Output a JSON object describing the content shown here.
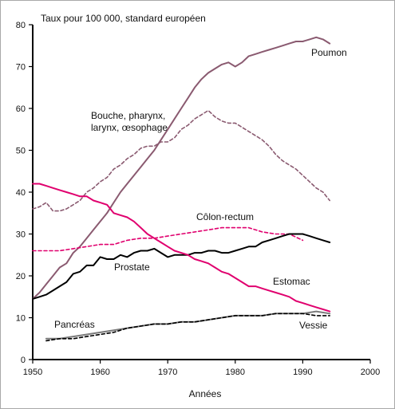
{
  "chart_data": {
    "type": "line",
    "title": "",
    "ylabel": "Taux pour 100 000, standard européen",
    "xlabel": "Années",
    "xlim": [
      1950,
      2000
    ],
    "ylim": [
      0,
      80
    ],
    "xticks": [
      "1950",
      "1960",
      "1970",
      "1980",
      "1990",
      "2000"
    ],
    "yticks": [
      "0",
      "10",
      "20",
      "30",
      "40",
      "50",
      "60",
      "70",
      "80"
    ],
    "grid": false,
    "series": [
      {
        "name": "Poumon",
        "color": "#8a5a70",
        "dash": "solid",
        "x": [
          1950,
          1951,
          1952,
          1953,
          1954,
          1955,
          1956,
          1957,
          1958,
          1959,
          1960,
          1961,
          1962,
          1963,
          1964,
          1965,
          1966,
          1967,
          1968,
          1969,
          1970,
          1971,
          1972,
          1973,
          1974,
          1975,
          1976,
          1977,
          1978,
          1979,
          1980,
          1981,
          1982,
          1983,
          1984,
          1985,
          1986,
          1987,
          1988,
          1989,
          1990,
          1991,
          1992,
          1993,
          1994
        ],
        "y": [
          14.5,
          16,
          18,
          20,
          22,
          23,
          25.5,
          27,
          29,
          31,
          33,
          35,
          37.5,
          40,
          42,
          44,
          46,
          48,
          50,
          52.5,
          55,
          57.5,
          60,
          62.5,
          65,
          67,
          68.5,
          69.5,
          70.5,
          71,
          70,
          71,
          72.5,
          73,
          73.5,
          74,
          74.5,
          75,
          75.5,
          76,
          76,
          76.5,
          77,
          76.5,
          75.5
        ]
      },
      {
        "name": "Bouche, pharynx, larynx, œsophage",
        "color": "#8a5a70",
        "dash": "dashed",
        "x": [
          1950,
          1951,
          1952,
          1953,
          1954,
          1955,
          1956,
          1957,
          1958,
          1959,
          1960,
          1961,
          1962,
          1963,
          1964,
          1965,
          1966,
          1967,
          1968,
          1969,
          1970,
          1971,
          1972,
          1973,
          1974,
          1975,
          1976,
          1977,
          1978,
          1979,
          1980,
          1981,
          1982,
          1983,
          1984,
          1985,
          1986,
          1987,
          1988,
          1989,
          1990,
          1991,
          1992,
          1993,
          1994
        ],
        "y": [
          36,
          36.5,
          37.5,
          35.5,
          35.5,
          36,
          37,
          38,
          40,
          41,
          42.5,
          43.5,
          45.5,
          46.5,
          48,
          49,
          50.5,
          51,
          51,
          52,
          52,
          53,
          55,
          56,
          57.5,
          58.5,
          59.5,
          58,
          57,
          56.5,
          56.5,
          55.5,
          54.5,
          53.5,
          52.5,
          51,
          49,
          47.5,
          46.5,
          45.5,
          44,
          42.5,
          41,
          40,
          38
        ]
      },
      {
        "name": "Côlon-rectum",
        "color": "#e0006e",
        "dash": "dashed",
        "x": [
          1950,
          1952,
          1954,
          1956,
          1958,
          1960,
          1962,
          1964,
          1966,
          1968,
          1970,
          1972,
          1974,
          1976,
          1978,
          1980,
          1982,
          1984,
          1986,
          1988,
          1990
        ],
        "y": [
          26,
          26,
          26,
          26.5,
          27,
          27.5,
          27.5,
          28.5,
          29,
          29,
          29.5,
          30,
          30.5,
          31,
          31.5,
          31.5,
          31.5,
          30.5,
          30,
          30,
          28.5
        ]
      },
      {
        "name": "Prostate",
        "color": "#000000",
        "dash": "solid",
        "x": [
          1950,
          1951,
          1952,
          1953,
          1954,
          1955,
          1956,
          1957,
          1958,
          1959,
          1960,
          1961,
          1962,
          1963,
          1964,
          1965,
          1966,
          1967,
          1968,
          1969,
          1970,
          1971,
          1972,
          1973,
          1974,
          1975,
          1976,
          1977,
          1978,
          1979,
          1980,
          1981,
          1982,
          1983,
          1984,
          1985,
          1986,
          1987,
          1988,
          1989,
          1990,
          1991,
          1992,
          1993,
          1994
        ],
        "y": [
          14.5,
          15,
          15.5,
          16.5,
          17.5,
          18.5,
          20.5,
          21,
          22.5,
          22.5,
          24.5,
          24,
          24,
          25,
          24.5,
          25.5,
          26,
          26,
          26.5,
          25.5,
          24.5,
          25,
          25,
          25,
          25.5,
          25.5,
          26,
          26,
          25.5,
          25.5,
          26,
          26.5,
          27,
          27,
          28,
          28.5,
          29,
          29.5,
          30,
          30,
          30,
          29.5,
          29,
          28.5,
          28
        ]
      },
      {
        "name": "Estomac",
        "color": "#e0006e",
        "dash": "solid",
        "x": [
          1950,
          1951,
          1952,
          1953,
          1954,
          1955,
          1956,
          1957,
          1958,
          1959,
          1960,
          1961,
          1962,
          1963,
          1964,
          1965,
          1966,
          1967,
          1968,
          1969,
          1970,
          1971,
          1972,
          1973,
          1974,
          1975,
          1976,
          1977,
          1978,
          1979,
          1980,
          1981,
          1982,
          1983,
          1984,
          1985,
          1986,
          1987,
          1988,
          1989,
          1990,
          1991,
          1992,
          1993,
          1994
        ],
        "y": [
          42,
          42,
          41.5,
          41,
          40.5,
          40,
          39.5,
          39,
          39,
          38,
          37.5,
          37,
          35,
          34.5,
          34,
          33,
          31.5,
          30,
          29,
          28,
          27,
          26,
          25.5,
          25,
          24,
          23.5,
          23,
          22,
          21,
          20.5,
          19.5,
          18.5,
          17.5,
          17.5,
          17,
          16.5,
          16,
          15.5,
          15,
          14,
          13.5,
          13,
          12.5,
          12,
          11.5
        ]
      },
      {
        "name": "Pancréas",
        "color": "#7a7a7a",
        "dash": "solid",
        "x": [
          1952,
          1954,
          1956,
          1958,
          1960,
          1962,
          1964,
          1966,
          1968,
          1970,
          1972,
          1974,
          1976,
          1978,
          1980,
          1982,
          1984,
          1986,
          1988,
          1990,
          1992,
          1994
        ],
        "y": [
          5,
          5,
          5.5,
          6,
          6.5,
          7,
          7.5,
          8,
          8.5,
          8.5,
          9,
          9,
          9.5,
          10,
          10.5,
          10.5,
          10.5,
          11,
          11,
          11,
          11.5,
          11
        ]
      },
      {
        "name": "Vessie",
        "color": "#000000",
        "dash": "dashed",
        "x": [
          1952,
          1954,
          1956,
          1958,
          1960,
          1962,
          1964,
          1966,
          1968,
          1970,
          1972,
          1974,
          1976,
          1978,
          1980,
          1982,
          1984,
          1986,
          1988,
          1990,
          1992,
          1994
        ],
        "y": [
          4.5,
          5,
          5,
          5.5,
          6,
          6.5,
          7.5,
          8,
          8.5,
          8.5,
          9,
          9,
          9.5,
          10,
          10.5,
          10.5,
          10.5,
          11,
          11,
          11,
          10.5,
          10.5
        ]
      }
    ]
  }
}
